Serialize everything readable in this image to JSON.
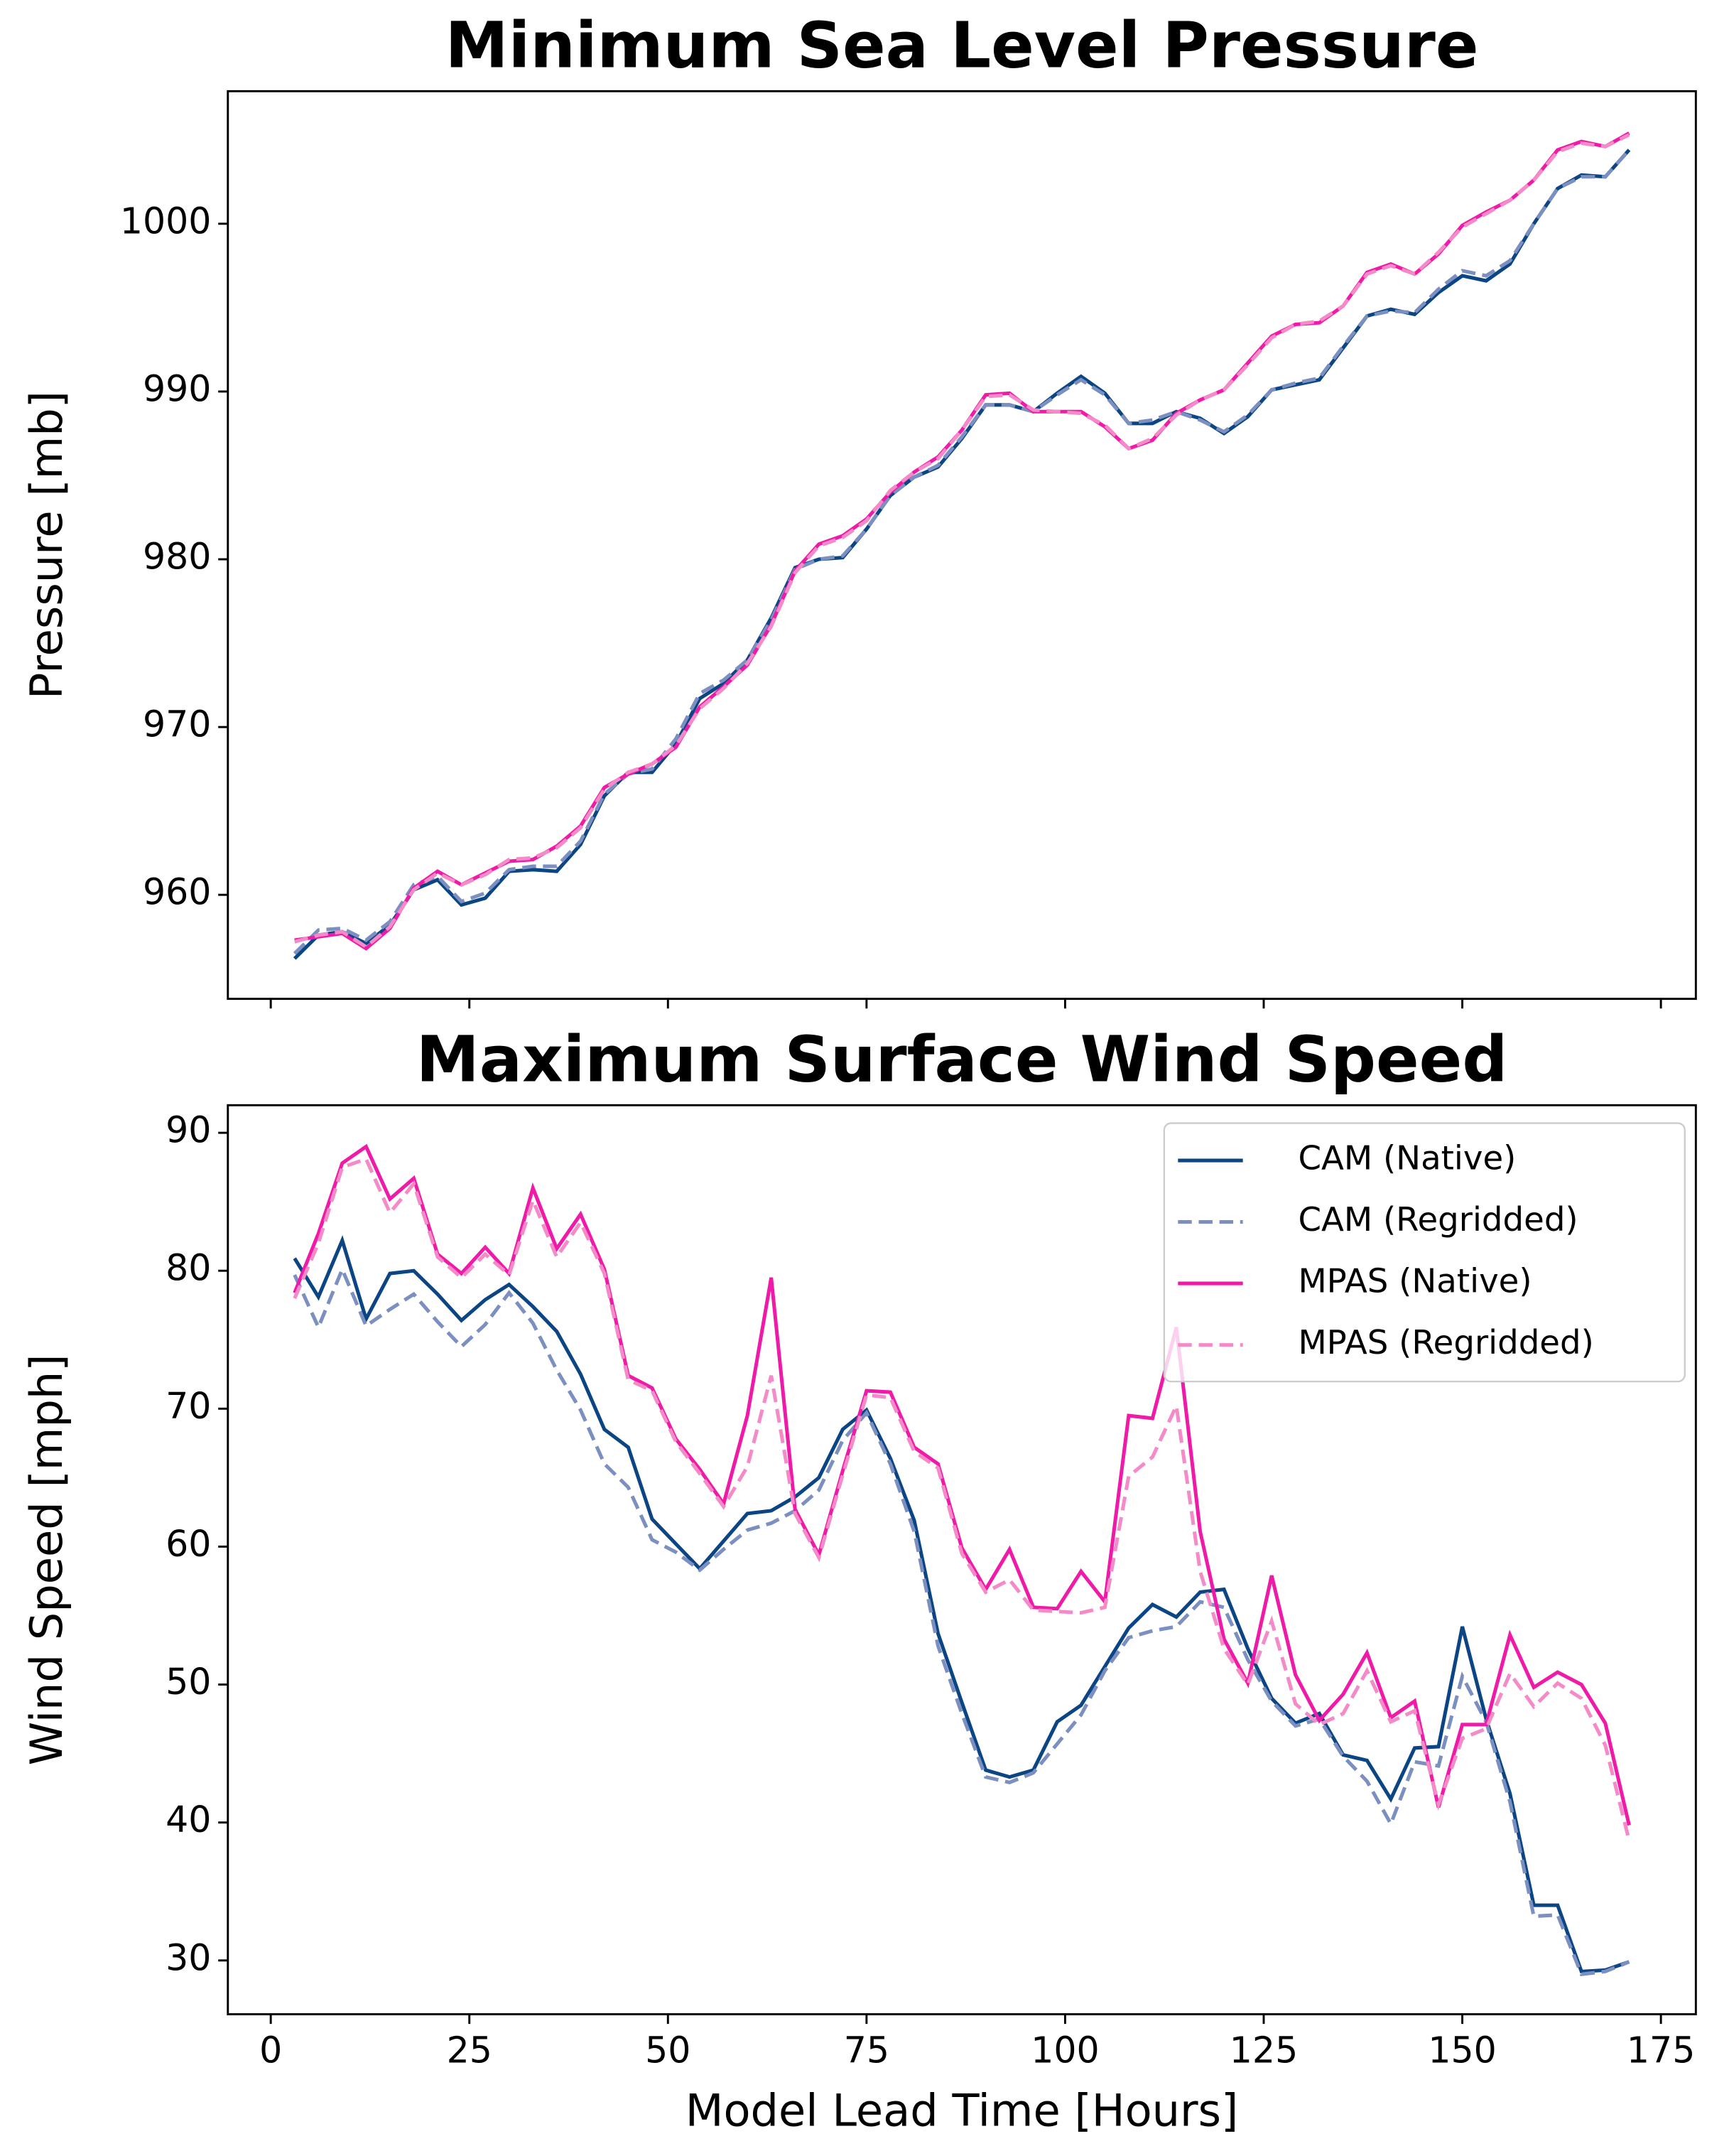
{
  "chart_data": [
    {
      "type": "line",
      "title": "Minimum Sea Level Pressure",
      "ylabel": "Pressure [mb]",
      "x": [
        3,
        6,
        9,
        12,
        15,
        18,
        21,
        24,
        27,
        30,
        33,
        36,
        39,
        42,
        45,
        48,
        51,
        54,
        57,
        60,
        63,
        66,
        69,
        72,
        75,
        78,
        81,
        84,
        87,
        90,
        93,
        96,
        99,
        102,
        105,
        108,
        111,
        114,
        117,
        120,
        123,
        126,
        129,
        132,
        135,
        138,
        141,
        144,
        147,
        150,
        153,
        156,
        159,
        162,
        165,
        168,
        171
      ],
      "xlim": [
        -5.4,
        179.4
      ],
      "xticks": [
        0,
        25,
        50,
        75,
        100,
        125,
        150,
        175
      ],
      "ylim": [
        953.8,
        1007.9
      ],
      "yticks": [
        960,
        970,
        980,
        990,
        1000
      ],
      "series": [
        {
          "name": "CAM (Native)",
          "color": "#0b4584",
          "linestyle": "solid",
          "values": [
            956.2,
            957.6,
            957.8,
            957.1,
            958.2,
            960.3,
            960.9,
            959.4,
            959.8,
            961.4,
            961.5,
            961.4,
            963.0,
            965.9,
            967.3,
            967.3,
            969.0,
            971.7,
            972.6,
            974.0,
            976.5,
            979.5,
            980.0,
            980.1,
            981.8,
            983.8,
            984.9,
            985.5,
            987.2,
            989.2,
            989.2,
            988.8,
            989.9,
            990.9,
            989.9,
            988.1,
            988.1,
            988.8,
            988.4,
            987.5,
            988.5,
            990.1,
            990.4,
            990.7,
            992.6,
            994.5,
            994.9,
            994.6,
            995.9,
            996.9,
            996.6,
            997.6,
            1000.0,
            1002.1,
            1002.9,
            1002.8,
            1004.4
          ]
        },
        {
          "name": "CAM (Regridded)",
          "color": "#7b8fc0",
          "linestyle": "dashed",
          "values": [
            956.5,
            957.9,
            958.0,
            957.3,
            958.4,
            960.6,
            961.1,
            959.6,
            960.1,
            961.5,
            961.7,
            961.7,
            963.2,
            966.0,
            967.2,
            967.5,
            969.3,
            972.0,
            972.8,
            974.0,
            976.4,
            979.4,
            980.0,
            980.2,
            981.8,
            983.8,
            984.9,
            985.6,
            987.3,
            989.2,
            989.2,
            988.8,
            989.8,
            990.7,
            989.8,
            988.1,
            988.3,
            988.8,
            988.3,
            987.6,
            988.6,
            990.1,
            990.5,
            990.8,
            992.7,
            994.5,
            994.8,
            994.7,
            996.1,
            997.2,
            996.9,
            997.8,
            1000.0,
            1002.1,
            1002.8,
            1002.8,
            1004.4
          ]
        },
        {
          "name": "MPAS (Native)",
          "color": "#f01aa8",
          "linestyle": "solid",
          "values": [
            957.3,
            957.5,
            957.7,
            956.8,
            958.0,
            960.4,
            961.4,
            960.6,
            961.3,
            962.0,
            962.1,
            962.9,
            964.1,
            966.4,
            967.2,
            967.8,
            968.8,
            971.2,
            972.4,
            973.7,
            976.1,
            979.3,
            980.9,
            981.4,
            982.4,
            984.0,
            985.2,
            986.1,
            987.7,
            989.8,
            989.9,
            988.8,
            988.8,
            988.8,
            987.9,
            986.6,
            987.1,
            988.7,
            989.5,
            990.1,
            991.7,
            993.3,
            994.0,
            994.1,
            995.1,
            997.1,
            997.6,
            997.0,
            998.2,
            999.9,
            1000.7,
            1001.4,
            1002.6,
            1004.4,
            1004.9,
            1004.6,
            1005.4
          ]
        },
        {
          "name": "MPAS (Regridded)",
          "color": "#f58ac8",
          "linestyle": "dashed",
          "values": [
            957.2,
            957.6,
            957.8,
            956.9,
            958.1,
            960.3,
            961.3,
            960.6,
            961.2,
            962.1,
            962.2,
            962.8,
            964.0,
            966.3,
            967.3,
            967.8,
            968.9,
            971.1,
            972.3,
            973.8,
            976.0,
            979.2,
            980.8,
            981.3,
            982.3,
            984.1,
            985.2,
            986.0,
            987.7,
            989.7,
            989.8,
            988.9,
            988.8,
            988.7,
            988.0,
            986.6,
            987.2,
            988.6,
            989.5,
            990.1,
            991.6,
            993.2,
            994.0,
            994.2,
            995.1,
            997.0,
            997.5,
            997.0,
            998.3,
            999.8,
            1000.6,
            1001.4,
            1002.6,
            1004.3,
            1004.8,
            1004.6,
            1005.3
          ]
        }
      ]
    },
    {
      "type": "line",
      "title": "Maximum Surface Wind Speed",
      "xlabel": "Model Lead Time [Hours]",
      "ylabel": "Wind Speed [mph]",
      "x": [
        3,
        6,
        9,
        12,
        15,
        18,
        21,
        24,
        27,
        30,
        33,
        36,
        39,
        42,
        45,
        48,
        51,
        54,
        57,
        60,
        63,
        66,
        69,
        72,
        75,
        78,
        81,
        84,
        87,
        90,
        93,
        96,
        99,
        102,
        105,
        108,
        111,
        114,
        117,
        120,
        123,
        126,
        129,
        132,
        135,
        138,
        141,
        144,
        147,
        150,
        153,
        156,
        159,
        162,
        165,
        168,
        171
      ],
      "xlim": [
        -5.4,
        179.4
      ],
      "xticks": [
        0,
        25,
        50,
        75,
        100,
        125,
        150,
        175
      ],
      "ylim": [
        26.1,
        92.0
      ],
      "yticks": [
        30,
        40,
        50,
        60,
        70,
        80,
        90
      ],
      "legend": "upper right",
      "series": [
        {
          "name": "CAM (Native)",
          "color": "#0b4584",
          "linestyle": "solid",
          "values": [
            80.9,
            78.1,
            82.2,
            76.5,
            79.8,
            80.0,
            78.3,
            76.4,
            77.9,
            79.0,
            77.4,
            75.6,
            72.5,
            68.5,
            67.2,
            62.0,
            60.2,
            58.4,
            60.4,
            62.4,
            62.6,
            63.6,
            65.0,
            68.5,
            69.9,
            66.4,
            61.9,
            53.7,
            48.7,
            43.8,
            43.3,
            43.8,
            47.3,
            48.5,
            51.3,
            54.1,
            55.8,
            54.9,
            56.7,
            56.9,
            52.6,
            49.0,
            47.2,
            47.9,
            44.9,
            44.5,
            41.7,
            45.4,
            45.5,
            54.2,
            47.5,
            42.1,
            34.0,
            34.0,
            29.2,
            29.3,
            29.9
          ]
        },
        {
          "name": "CAM (Regridded)",
          "color": "#7b8fc0",
          "linestyle": "dashed",
          "values": [
            79.7,
            75.9,
            80.1,
            76.0,
            77.2,
            78.3,
            76.3,
            74.5,
            76.1,
            78.4,
            76.2,
            72.8,
            69.9,
            66.0,
            64.3,
            60.5,
            59.6,
            58.3,
            59.8,
            61.2,
            61.7,
            62.6,
            64.1,
            67.7,
            69.7,
            66.0,
            61.1,
            52.8,
            47.9,
            43.3,
            42.9,
            43.6,
            45.7,
            47.8,
            51.0,
            53.4,
            53.9,
            54.2,
            56.0,
            55.6,
            51.8,
            48.8,
            47.0,
            47.5,
            44.8,
            43.0,
            39.9,
            44.4,
            44.1,
            50.6,
            47.3,
            41.5,
            33.2,
            33.3,
            29.0,
            29.2,
            29.9
          ]
        },
        {
          "name": "MPAS (Native)",
          "color": "#f01aa8",
          "linestyle": "solid",
          "values": [
            78.4,
            82.7,
            87.8,
            89.0,
            85.2,
            86.7,
            81.2,
            79.8,
            81.7,
            79.8,
            86.0,
            81.6,
            84.1,
            80.1,
            72.4,
            71.5,
            67.8,
            65.6,
            63.1,
            69.5,
            79.5,
            62.7,
            59.4,
            65.5,
            71.3,
            71.2,
            67.2,
            66.0,
            59.9,
            56.9,
            59.8,
            55.6,
            55.5,
            58.2,
            56.0,
            69.5,
            69.3,
            75.9,
            61.1,
            53.3,
            50.1,
            57.9,
            50.7,
            47.4,
            49.3,
            52.3,
            47.6,
            48.8,
            41.1,
            47.1,
            47.1,
            53.6,
            49.8,
            50.9,
            50.0,
            47.2,
            39.8
          ]
        },
        {
          "name": "MPAS (Regridded)",
          "color": "#f58ac8",
          "linestyle": "dashed",
          "values": [
            78.0,
            82.0,
            87.5,
            88.1,
            84.2,
            86.3,
            81.0,
            79.5,
            81.2,
            79.7,
            85.1,
            81.0,
            83.5,
            79.8,
            72.1,
            71.3,
            67.6,
            65.3,
            62.9,
            65.8,
            72.4,
            62.4,
            59.2,
            65.2,
            71.0,
            70.8,
            66.9,
            65.7,
            59.5,
            56.7,
            57.6,
            55.4,
            55.3,
            55.2,
            55.6,
            65.1,
            66.5,
            70.2,
            58.2,
            52.6,
            50.0,
            54.6,
            48.6,
            47.1,
            47.9,
            51.0,
            47.3,
            48.1,
            41.3,
            46.1,
            46.8,
            50.8,
            48.4,
            50.1,
            49.0,
            45.6,
            38.7
          ]
        }
      ]
    }
  ]
}
